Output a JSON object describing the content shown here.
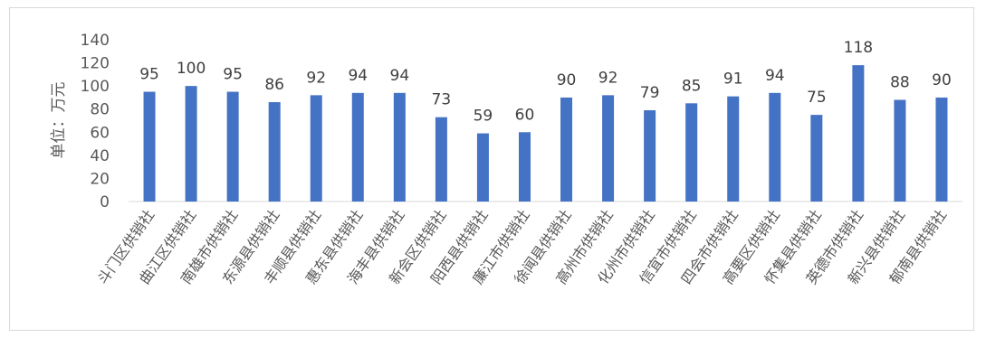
{
  "chart_data": {
    "type": "bar",
    "ylabel": "单位：万元",
    "ylim": [
      0,
      140
    ],
    "yticks": [
      0,
      20,
      40,
      60,
      80,
      100,
      120,
      140
    ],
    "grid": false,
    "legend": "none",
    "bar_color": "#4472c4",
    "categories": [
      "斗门区供销社",
      "曲江区供销社",
      "南雄市供销社",
      "东源县供销社",
      "丰顺县供销社",
      "惠东县供销社",
      "海丰县供销社",
      "新会区供销社",
      "阳西县供销社",
      "廉江市供销社",
      "徐闻县供销社",
      "高州市供销社",
      "化州市供销社",
      "信宜市供销社",
      "四会市供销社",
      "高要区供销社",
      "怀集县供销社",
      "英德市供销社",
      "新兴县供销社",
      "郁南县供销社"
    ],
    "values": [
      95,
      100,
      95,
      86,
      92,
      94,
      94,
      73,
      59,
      60,
      90,
      92,
      79,
      85,
      91,
      94,
      75,
      118,
      88,
      90
    ]
  }
}
